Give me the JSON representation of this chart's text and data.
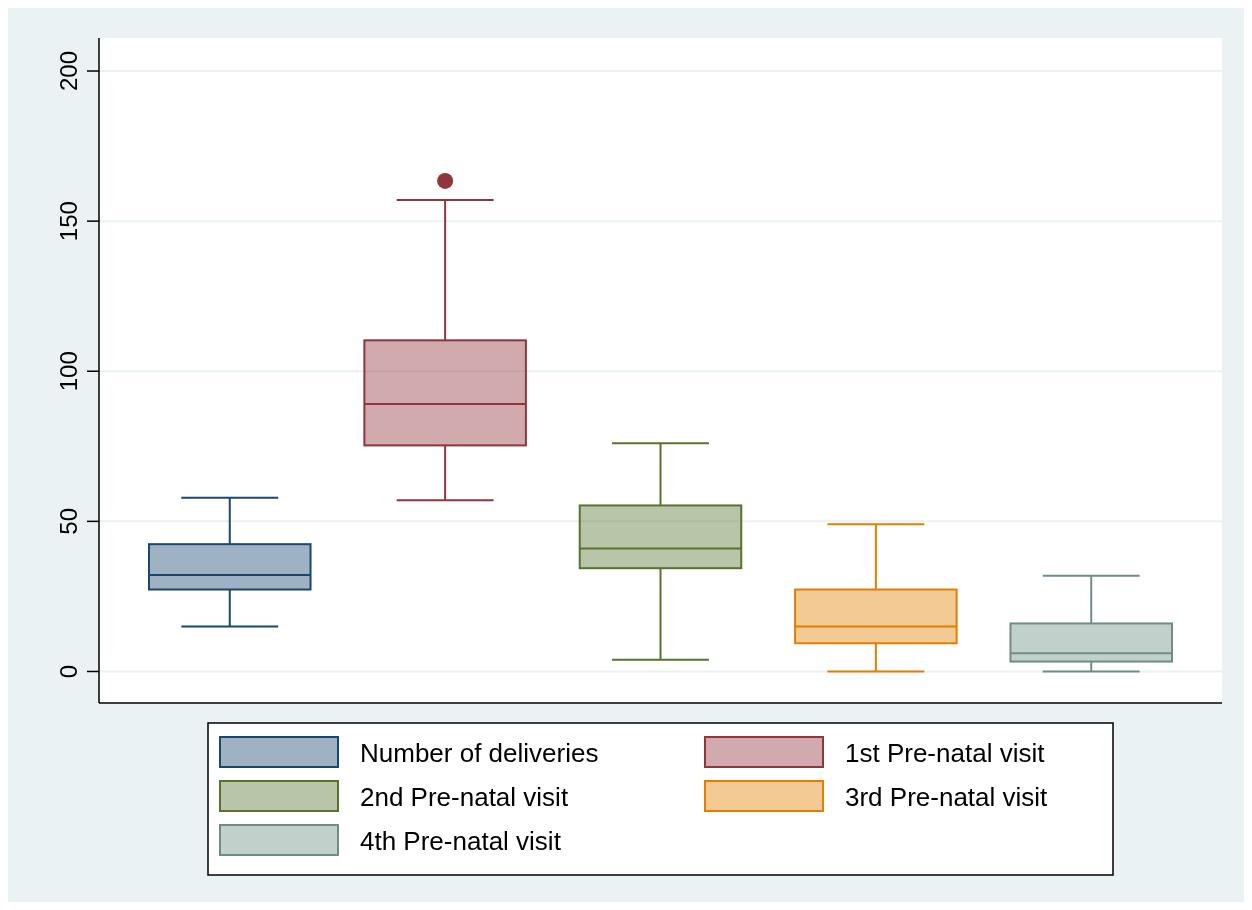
{
  "chart_data": {
    "type": "box",
    "categories": [
      null,
      null,
      null,
      null,
      null
    ],
    "series": [
      {
        "name": "Number of deliveries",
        "color": "#1a476f",
        "boxes": [
          {
            "low": 15,
            "q1": 27.3,
            "median": 32.1,
            "q3": 42.4,
            "high": 57.9
          },
          null,
          null,
          null,
          null
        ]
      },
      {
        "name": "1st Pre-natal visit",
        "color": "#90353b",
        "boxes": [
          null,
          {
            "low": 57,
            "q1": 75.3,
            "median": 89.1,
            "q3": 110.3,
            "high": 157,
            "outliers": [
              163.4
            ]
          },
          null,
          null,
          null
        ]
      },
      {
        "name": "2nd Pre-natal visit",
        "color": "#55752f",
        "boxes": [
          null,
          null,
          {
            "low": 3.9,
            "q1": 34.4,
            "median": 41,
            "q3": 55.3,
            "high": 76
          },
          null,
          null
        ]
      },
      {
        "name": "3rd Pre-natal visit",
        "color": "#e37e00",
        "boxes": [
          null,
          null,
          null,
          {
            "low": 0,
            "q1": 9.4,
            "median": 15,
            "q3": 27.3,
            "high": 49
          },
          null
        ]
      },
      {
        "name": "4th Pre-natal visit",
        "color": "#6e8e84",
        "boxes": [
          null,
          null,
          null,
          null,
          {
            "low": 0,
            "q1": 3.3,
            "median": 6.1,
            "q3": 16,
            "high": 31.9
          }
        ]
      }
    ],
    "ylim": [
      -10.5,
      211
    ],
    "yticks": [
      0,
      50,
      100,
      150,
      200
    ],
    "grid": "y",
    "legend": "bottom"
  }
}
